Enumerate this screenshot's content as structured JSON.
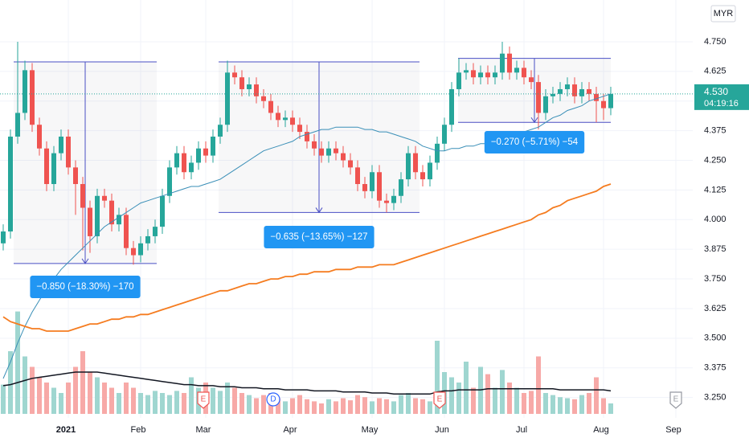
{
  "chart_data": {
    "type": "candlestick",
    "currency": "MYR",
    "grid": true,
    "up_color": "#26a69a",
    "down_color": "#ef5350",
    "volume_up_color": "#9fd6d0",
    "volume_down_color": "#f7a9a7",
    "ylim": [
      3.164,
      4.926
    ],
    "yticks": [
      {
        "value": 3.25,
        "label": "3.250"
      },
      {
        "value": 3.375,
        "label": "3.375"
      },
      {
        "value": 3.5,
        "label": "3.500"
      },
      {
        "value": 3.625,
        "label": "3.625"
      },
      {
        "value": 3.75,
        "label": "3.750"
      },
      {
        "value": 3.875,
        "label": "3.875"
      },
      {
        "value": 4,
        "label": "4.000"
      },
      {
        "value": 4.125,
        "label": "4.125"
      },
      {
        "value": 4.25,
        "label": "4.250"
      },
      {
        "value": 4.375,
        "label": "4.375"
      },
      {
        "value": 4.5,
        "label": "4.500"
      },
      {
        "value": 4.625,
        "label": "4.625"
      },
      {
        "value": 4.75,
        "label": "4.750"
      }
    ],
    "vlim": [
      0,
      100
    ],
    "categories": [
      null,
      null,
      null,
      null,
      null,
      null,
      null,
      null,
      null,
      "2021",
      null,
      null,
      null,
      null,
      null,
      null,
      null,
      null,
      null,
      "Feb",
      null,
      null,
      null,
      null,
      null,
      null,
      null,
      null,
      "Mar",
      null,
      null,
      null,
      null,
      null,
      null,
      null,
      null,
      null,
      null,
      null,
      "Apr",
      null,
      null,
      null,
      null,
      null,
      null,
      null,
      null,
      null,
      null,
      "May",
      null,
      null,
      null,
      null,
      null,
      null,
      null,
      null,
      null,
      "Jun",
      null,
      null,
      null,
      null,
      null,
      null,
      null,
      null,
      null,
      null,
      "Jul",
      null,
      null,
      null,
      null,
      null,
      null,
      null,
      null,
      null,
      null,
      "Aug",
      null,
      null,
      null,
      null,
      null,
      null,
      null,
      null,
      null,
      "Sep"
    ],
    "open": [
      3.9,
      3.95,
      4.35,
      4.45,
      4.63,
      4.4,
      4.3,
      4.15,
      4.28,
      4.35,
      4.22,
      4.15,
      4.05,
      3.93,
      4.1,
      4.08,
      3.98,
      4.02,
      3.88,
      3.85,
      3.9,
      3.93,
      3.97,
      4.1,
      4.22,
      4.28,
      4.2,
      4.24,
      4.3,
      4.27,
      4.35,
      4.4,
      4.62,
      4.6,
      4.55,
      4.57,
      4.52,
      4.5,
      4.45,
      4.42,
      4.43,
      4.4,
      4.37,
      4.33,
      4.3,
      4.27,
      4.3,
      4.28,
      4.25,
      4.22,
      4.15,
      4.12,
      4.2,
      4.08,
      4.07,
      4.1,
      4.17,
      4.28,
      4.2,
      4.17,
      4.24,
      4.32,
      4.4,
      4.55,
      4.62,
      4.63,
      4.6,
      4.62,
      4.6,
      4.62,
      4.7,
      4.62,
      4.64,
      4.6,
      4.58,
      4.45,
      4.52,
      4.53,
      4.55,
      4.57,
      4.52,
      4.55,
      4.53,
      4.5,
      4.47,
      null,
      null,
      null,
      null,
      null,
      null,
      null,
      null,
      null
    ],
    "high": [
      3.98,
      4.38,
      4.75,
      4.67,
      4.66,
      4.43,
      4.33,
      4.31,
      4.38,
      4.38,
      4.25,
      4.18,
      4.08,
      4.13,
      4.13,
      4.11,
      4.05,
      4.05,
      3.91,
      3.93,
      3.96,
      4.0,
      4.13,
      4.25,
      4.31,
      4.31,
      4.27,
      4.33,
      4.33,
      4.38,
      4.43,
      4.67,
      4.65,
      4.63,
      4.6,
      4.6,
      4.55,
      4.53,
      4.48,
      4.46,
      4.46,
      4.43,
      4.4,
      4.36,
      4.33,
      4.33,
      4.33,
      4.31,
      4.28,
      4.25,
      4.18,
      4.23,
      4.23,
      4.11,
      4.13,
      4.2,
      4.31,
      4.31,
      4.23,
      4.27,
      4.35,
      4.43,
      4.58,
      4.68,
      4.66,
      4.66,
      4.65,
      4.65,
      4.65,
      4.75,
      4.73,
      4.67,
      4.67,
      4.63,
      4.61,
      4.55,
      4.56,
      4.58,
      4.6,
      4.6,
      4.58,
      4.58,
      4.56,
      4.53,
      4.56,
      null,
      null,
      null,
      null,
      null,
      null,
      null,
      null,
      null
    ],
    "low": [
      3.87,
      3.92,
      4.32,
      4.42,
      4.37,
      4.27,
      4.12,
      4.12,
      4.25,
      4.19,
      4.02,
      3.87,
      3.86,
      3.9,
      4.05,
      3.95,
      3.95,
      3.85,
      3.81,
      3.82,
      3.87,
      3.9,
      3.94,
      4.07,
      4.19,
      4.17,
      4.17,
      4.21,
      4.24,
      4.24,
      4.32,
      4.37,
      4.57,
      4.52,
      4.52,
      4.49,
      4.47,
      4.42,
      4.39,
      4.39,
      4.37,
      4.34,
      4.3,
      4.27,
      4.24,
      4.24,
      4.25,
      4.22,
      4.19,
      4.12,
      4.09,
      4.09,
      4.05,
      4.03,
      4.04,
      4.07,
      4.14,
      4.17,
      4.14,
      4.14,
      4.21,
      4.29,
      4.37,
      4.52,
      4.59,
      4.57,
      4.57,
      4.57,
      4.57,
      4.59,
      4.59,
      4.59,
      4.57,
      4.55,
      4.38,
      4.42,
      4.49,
      4.5,
      4.52,
      4.49,
      4.49,
      4.5,
      4.41,
      4.42,
      4.44,
      null,
      null,
      null,
      null,
      null,
      null,
      null,
      null,
      null
    ],
    "close": [
      3.95,
      4.35,
      4.45,
      4.63,
      4.4,
      4.3,
      4.15,
      4.28,
      4.35,
      4.22,
      4.15,
      4.05,
      3.93,
      4.1,
      4.08,
      3.98,
      4.02,
      3.88,
      3.85,
      3.9,
      3.93,
      3.97,
      4.1,
      4.22,
      4.28,
      4.2,
      4.24,
      4.3,
      4.27,
      4.35,
      4.4,
      4.62,
      4.6,
      4.55,
      4.57,
      4.52,
      4.5,
      4.45,
      4.42,
      4.43,
      4.4,
      4.37,
      4.33,
      4.3,
      4.27,
      4.3,
      4.28,
      4.25,
      4.22,
      4.15,
      4.12,
      4.2,
      4.08,
      4.07,
      4.1,
      4.17,
      4.28,
      4.2,
      4.17,
      4.24,
      4.32,
      4.4,
      4.55,
      4.62,
      4.63,
      4.6,
      4.62,
      4.6,
      4.62,
      4.7,
      4.62,
      4.64,
      4.6,
      4.58,
      4.45,
      4.52,
      4.53,
      4.55,
      4.57,
      4.52,
      4.55,
      4.53,
      4.5,
      4.47,
      4.53,
      null,
      null,
      null,
      null,
      null,
      null,
      null,
      null,
      null
    ],
    "volume": [
      28,
      60,
      98,
      55,
      45,
      35,
      30,
      25,
      20,
      30,
      45,
      60,
      40,
      35,
      30,
      25,
      20,
      30,
      25,
      20,
      18,
      22,
      20,
      18,
      22,
      20,
      35,
      25,
      30,
      25,
      22,
      30,
      25,
      20,
      18,
      15,
      18,
      20,
      15,
      12,
      15,
      18,
      14,
      12,
      10,
      14,
      12,
      15,
      13,
      18,
      16,
      12,
      15,
      14,
      12,
      18,
      20,
      15,
      14,
      12,
      70,
      40,
      35,
      30,
      50,
      25,
      45,
      38,
      25,
      42,
      30,
      25,
      20,
      22,
      55,
      20,
      18,
      16,
      15,
      14,
      18,
      20,
      35,
      15,
      10,
      null,
      null,
      null,
      null,
      null,
      null,
      null,
      null,
      null
    ],
    "volume_ma": {
      "color": "#131722",
      "values": [
        27,
        28,
        30,
        32,
        34,
        35,
        36,
        37,
        38,
        39,
        40,
        40,
        40,
        40,
        39,
        38,
        37,
        36,
        35,
        34,
        33,
        32,
        31,
        30,
        29,
        28,
        28,
        27,
        27,
        27,
        26,
        26,
        26,
        25,
        25,
        25,
        24,
        24,
        24,
        23,
        23,
        23,
        23,
        22,
        22,
        22,
        22,
        21,
        21,
        21,
        21,
        20,
        20,
        20,
        19,
        19,
        19,
        19,
        19,
        19,
        21,
        22,
        22,
        23,
        23,
        23,
        23,
        24,
        24,
        24,
        24,
        24,
        24,
        24,
        24,
        24,
        24,
        23,
        23,
        23,
        23,
        23,
        23,
        23,
        22,
        null,
        null,
        null,
        null,
        null,
        null,
        null,
        null,
        null
      ]
    },
    "lines": [
      {
        "color": "#3a8fb7",
        "values": [
          3.33,
          3.4,
          3.48,
          3.55,
          3.61,
          3.66,
          3.71,
          3.75,
          3.79,
          3.82,
          3.85,
          3.88,
          3.91,
          3.94,
          3.97,
          3.99,
          4.01,
          4.03,
          4.05,
          4.07,
          4.08,
          4.09,
          4.1,
          4.11,
          4.12,
          4.13,
          4.14,
          4.14,
          4.15,
          4.16,
          4.17,
          4.19,
          4.21,
          4.23,
          4.25,
          4.27,
          4.29,
          4.3,
          4.31,
          4.32,
          4.33,
          4.35,
          4.36,
          4.37,
          4.38,
          4.38,
          4.39,
          4.39,
          4.39,
          4.39,
          4.38,
          4.38,
          4.37,
          4.37,
          4.36,
          4.35,
          4.34,
          4.33,
          4.31,
          4.3,
          4.29,
          4.29,
          4.3,
          4.3,
          4.31,
          4.31,
          4.32,
          4.32,
          4.33,
          4.34,
          4.35,
          4.36,
          4.37,
          4.38,
          4.39,
          4.41,
          4.43,
          4.44,
          4.46,
          4.47,
          4.48,
          4.5,
          4.51,
          4.52,
          4.53,
          null,
          null,
          null,
          null,
          null,
          null,
          null,
          null,
          null
        ]
      },
      {
        "color": "#f57c20",
        "values": [
          3.59,
          3.57,
          3.56,
          3.55,
          3.54,
          3.54,
          3.53,
          3.53,
          3.53,
          3.53,
          3.54,
          3.55,
          3.56,
          3.56,
          3.57,
          3.58,
          3.58,
          3.59,
          3.59,
          3.6,
          3.6,
          3.61,
          3.62,
          3.63,
          3.64,
          3.65,
          3.66,
          3.67,
          3.68,
          3.69,
          3.7,
          3.7,
          3.71,
          3.72,
          3.73,
          3.73,
          3.74,
          3.75,
          3.75,
          3.76,
          3.76,
          3.77,
          3.77,
          3.78,
          3.78,
          3.78,
          3.79,
          3.79,
          3.79,
          3.8,
          3.8,
          3.8,
          3.81,
          3.81,
          3.81,
          3.82,
          3.83,
          3.84,
          3.85,
          3.86,
          3.87,
          3.88,
          3.89,
          3.9,
          3.91,
          3.92,
          3.93,
          3.94,
          3.95,
          3.96,
          3.97,
          3.98,
          3.99,
          4.0,
          4.02,
          4.03,
          4.05,
          4.06,
          4.08,
          4.09,
          4.1,
          4.11,
          4.12,
          4.14,
          4.15,
          null,
          null,
          null,
          null,
          null,
          null,
          null,
          null,
          null
        ]
      }
    ],
    "measurements": [
      {
        "top": 4.665,
        "bottom": 3.815,
        "label": "−0.850 (−18.30%) −170"
      },
      {
        "top": 4.665,
        "bottom": 4.03,
        "label": "−0.635 (−13.65%) −127"
      },
      {
        "top": 4.68,
        "bottom": 4.41,
        "label": "−0.270 (−5.71%) −54"
      }
    ],
    "last_price": {
      "value": 4.53,
      "label": "4.530"
    },
    "countdown": "04:19:16",
    "events": [
      {
        "label": "E"
      },
      {
        "label": "D"
      },
      {
        "label": "E"
      },
      {
        "label": "E"
      }
    ]
  }
}
